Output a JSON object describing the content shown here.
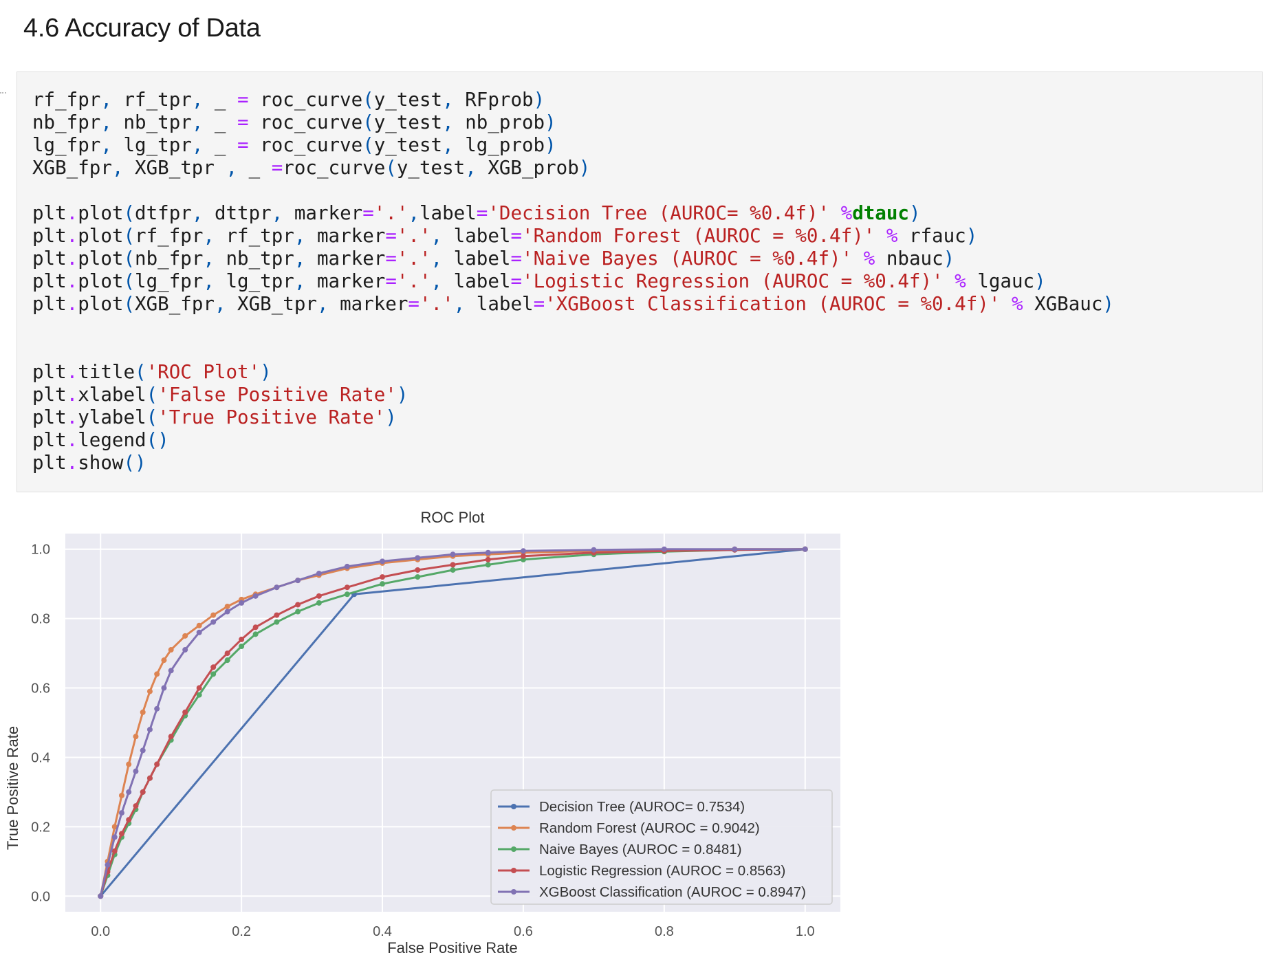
{
  "heading": "4.6 Accuracy of Data",
  "code_lines": [
    [
      [
        "t",
        "rf_fpr"
      ],
      [
        "p",
        ","
      ],
      [
        "t",
        " rf_tpr"
      ],
      [
        "p",
        ","
      ],
      [
        "t",
        " _ "
      ],
      [
        "o",
        "="
      ],
      [
        "t",
        " roc_curve"
      ],
      [
        "p",
        "("
      ],
      [
        "t",
        "y_test"
      ],
      [
        "p",
        ","
      ],
      [
        "t",
        " RFprob"
      ],
      [
        "p",
        ")"
      ]
    ],
    [
      [
        "t",
        "nb_fpr"
      ],
      [
        "p",
        ","
      ],
      [
        "t",
        " nb_tpr"
      ],
      [
        "p",
        ","
      ],
      [
        "t",
        " _ "
      ],
      [
        "o",
        "="
      ],
      [
        "t",
        " roc_curve"
      ],
      [
        "p",
        "("
      ],
      [
        "t",
        "y_test"
      ],
      [
        "p",
        ","
      ],
      [
        "t",
        " nb_prob"
      ],
      [
        "p",
        ")"
      ]
    ],
    [
      [
        "t",
        "lg_fpr"
      ],
      [
        "p",
        ","
      ],
      [
        "t",
        " lg_tpr"
      ],
      [
        "p",
        ","
      ],
      [
        "t",
        " _ "
      ],
      [
        "o",
        "="
      ],
      [
        "t",
        " roc_curve"
      ],
      [
        "p",
        "("
      ],
      [
        "t",
        "y_test"
      ],
      [
        "p",
        ","
      ],
      [
        "t",
        " lg_prob"
      ],
      [
        "p",
        ")"
      ]
    ],
    [
      [
        "t",
        "XGB_fpr"
      ],
      [
        "p",
        ","
      ],
      [
        "t",
        " XGB_tpr "
      ],
      [
        "p",
        ","
      ],
      [
        "t",
        " _ "
      ],
      [
        "o",
        "="
      ],
      [
        "t",
        "roc_curve"
      ],
      [
        "p",
        "("
      ],
      [
        "t",
        "y_test"
      ],
      [
        "p",
        ","
      ],
      [
        "t",
        " XGB_prob"
      ],
      [
        "p",
        ")"
      ]
    ],
    [],
    [
      [
        "t",
        "plt"
      ],
      [
        "o",
        "."
      ],
      [
        "t",
        "plot"
      ],
      [
        "p",
        "("
      ],
      [
        "t",
        "dtfpr"
      ],
      [
        "p",
        ","
      ],
      [
        "t",
        " dttpr"
      ],
      [
        "p",
        ","
      ],
      [
        "t",
        " marker"
      ],
      [
        "o",
        "="
      ],
      [
        "s",
        "'.'"
      ],
      [
        "p",
        ","
      ],
      [
        "t",
        "label"
      ],
      [
        "o",
        "="
      ],
      [
        "s",
        "'Decision Tree (AUROC= %0.4f)'"
      ],
      [
        "t",
        " "
      ],
      [
        "o",
        "%"
      ],
      [
        "k",
        "dtauc"
      ],
      [
        "p",
        ")"
      ]
    ],
    [
      [
        "t",
        "plt"
      ],
      [
        "o",
        "."
      ],
      [
        "t",
        "plot"
      ],
      [
        "p",
        "("
      ],
      [
        "t",
        "rf_fpr"
      ],
      [
        "p",
        ","
      ],
      [
        "t",
        " rf_tpr"
      ],
      [
        "p",
        ","
      ],
      [
        "t",
        " marker"
      ],
      [
        "o",
        "="
      ],
      [
        "s",
        "'.'"
      ],
      [
        "p",
        ","
      ],
      [
        "t",
        " label"
      ],
      [
        "o",
        "="
      ],
      [
        "s",
        "'Random Forest (AUROC = %0.4f)'"
      ],
      [
        "t",
        " "
      ],
      [
        "o",
        "%"
      ],
      [
        "t",
        " rfauc"
      ],
      [
        "p",
        ")"
      ]
    ],
    [
      [
        "t",
        "plt"
      ],
      [
        "o",
        "."
      ],
      [
        "t",
        "plot"
      ],
      [
        "p",
        "("
      ],
      [
        "t",
        "nb_fpr"
      ],
      [
        "p",
        ","
      ],
      [
        "t",
        " nb_tpr"
      ],
      [
        "p",
        ","
      ],
      [
        "t",
        " marker"
      ],
      [
        "o",
        "="
      ],
      [
        "s",
        "'.'"
      ],
      [
        "p",
        ","
      ],
      [
        "t",
        " label"
      ],
      [
        "o",
        "="
      ],
      [
        "s",
        "'Naive Bayes (AUROC = %0.4f)'"
      ],
      [
        "t",
        " "
      ],
      [
        "o",
        "%"
      ],
      [
        "t",
        " nbauc"
      ],
      [
        "p",
        ")"
      ]
    ],
    [
      [
        "t",
        "plt"
      ],
      [
        "o",
        "."
      ],
      [
        "t",
        "plot"
      ],
      [
        "p",
        "("
      ],
      [
        "t",
        "lg_fpr"
      ],
      [
        "p",
        ","
      ],
      [
        "t",
        " lg_tpr"
      ],
      [
        "p",
        ","
      ],
      [
        "t",
        " marker"
      ],
      [
        "o",
        "="
      ],
      [
        "s",
        "'.'"
      ],
      [
        "p",
        ","
      ],
      [
        "t",
        " label"
      ],
      [
        "o",
        "="
      ],
      [
        "s",
        "'Logistic Regression (AUROC = %0.4f)'"
      ],
      [
        "t",
        " "
      ],
      [
        "o",
        "%"
      ],
      [
        "t",
        " lgauc"
      ],
      [
        "p",
        ")"
      ]
    ],
    [
      [
        "t",
        "plt"
      ],
      [
        "o",
        "."
      ],
      [
        "t",
        "plot"
      ],
      [
        "p",
        "("
      ],
      [
        "t",
        "XGB_fpr"
      ],
      [
        "p",
        ","
      ],
      [
        "t",
        " XGB_tpr"
      ],
      [
        "p",
        ","
      ],
      [
        "t",
        " marker"
      ],
      [
        "o",
        "="
      ],
      [
        "s",
        "'.'"
      ],
      [
        "p",
        ","
      ],
      [
        "t",
        " label"
      ],
      [
        "o",
        "="
      ],
      [
        "s",
        "'XGBoost Classification (AUROC = %0.4f)'"
      ],
      [
        "t",
        " "
      ],
      [
        "o",
        "%"
      ],
      [
        "t",
        " XGBauc"
      ],
      [
        "p",
        ")"
      ]
    ],
    [],
    [],
    [
      [
        "t",
        "plt"
      ],
      [
        "o",
        "."
      ],
      [
        "t",
        "title"
      ],
      [
        "p",
        "("
      ],
      [
        "s",
        "'ROC Plot'"
      ],
      [
        "p",
        ")"
      ]
    ],
    [
      [
        "t",
        "plt"
      ],
      [
        "o",
        "."
      ],
      [
        "t",
        "xlabel"
      ],
      [
        "p",
        "("
      ],
      [
        "s",
        "'False Positive Rate'"
      ],
      [
        "p",
        ")"
      ]
    ],
    [
      [
        "t",
        "plt"
      ],
      [
        "o",
        "."
      ],
      [
        "t",
        "ylabel"
      ],
      [
        "p",
        "("
      ],
      [
        "s",
        "'True Positive Rate'"
      ],
      [
        "p",
        ")"
      ]
    ],
    [
      [
        "t",
        "plt"
      ],
      [
        "o",
        "."
      ],
      [
        "t",
        "legend"
      ],
      [
        "p",
        "()"
      ]
    ],
    [
      [
        "t",
        "plt"
      ],
      [
        "o",
        "."
      ],
      [
        "t",
        "show"
      ],
      [
        "p",
        "()"
      ]
    ]
  ],
  "colors": {
    "code_background": "#f5f5f5",
    "op": "#aa22ff",
    "string": "#ba2121",
    "paren": "#0055aa",
    "keyword": "#008000",
    "plot_background": "#eaeaf2"
  },
  "chart_data": {
    "type": "line",
    "title": "ROC Plot",
    "xlabel": "False Positive Rate",
    "ylabel": "True Positive Rate",
    "xlim": [
      -0.05,
      1.05
    ],
    "ylim": [
      -0.045,
      1.045
    ],
    "xticks": [
      "0.0",
      "0.2",
      "0.4",
      "0.6",
      "0.8",
      "1.0"
    ],
    "yticks": [
      "0.0",
      "0.2",
      "0.4",
      "0.6",
      "0.8",
      "1.0"
    ],
    "grid": true,
    "legend_position": "lower-right",
    "series": [
      {
        "name": "Decision Tree (AUROC= 0.7534)",
        "color": "#4c72b0",
        "x": [
          0.0,
          0.36,
          1.0
        ],
        "y": [
          0.0,
          0.87,
          1.0
        ]
      },
      {
        "name": "Random Forest (AUROC = 0.9042)",
        "color": "#dd8452",
        "x": [
          0.0,
          0.01,
          0.02,
          0.03,
          0.04,
          0.05,
          0.06,
          0.07,
          0.08,
          0.09,
          0.1,
          0.12,
          0.14,
          0.16,
          0.18,
          0.2,
          0.22,
          0.25,
          0.28,
          0.31,
          0.35,
          0.4,
          0.45,
          0.5,
          0.55,
          0.6,
          0.7,
          0.8,
          0.9,
          1.0
        ],
        "y": [
          0.0,
          0.1,
          0.2,
          0.29,
          0.38,
          0.46,
          0.53,
          0.59,
          0.64,
          0.68,
          0.71,
          0.75,
          0.78,
          0.81,
          0.835,
          0.855,
          0.87,
          0.89,
          0.91,
          0.925,
          0.945,
          0.96,
          0.97,
          0.98,
          0.985,
          0.99,
          0.995,
          0.998,
          1.0,
          1.0
        ]
      },
      {
        "name": "Naive Bayes (AUROC = 0.8481)",
        "color": "#55a868",
        "x": [
          0.0,
          0.01,
          0.02,
          0.03,
          0.04,
          0.05,
          0.06,
          0.07,
          0.08,
          0.1,
          0.12,
          0.14,
          0.16,
          0.18,
          0.2,
          0.22,
          0.25,
          0.28,
          0.31,
          0.35,
          0.4,
          0.45,
          0.5,
          0.55,
          0.6,
          0.7,
          0.8,
          0.9,
          1.0
        ],
        "y": [
          0.0,
          0.06,
          0.12,
          0.17,
          0.21,
          0.25,
          0.3,
          0.34,
          0.38,
          0.45,
          0.52,
          0.58,
          0.64,
          0.68,
          0.72,
          0.755,
          0.79,
          0.82,
          0.845,
          0.87,
          0.9,
          0.92,
          0.94,
          0.955,
          0.97,
          0.985,
          0.993,
          0.998,
          1.0
        ]
      },
      {
        "name": "Logistic Regression (AUROC = 0.8563)",
        "color": "#c44e52",
        "x": [
          0.0,
          0.01,
          0.02,
          0.03,
          0.04,
          0.05,
          0.06,
          0.07,
          0.08,
          0.1,
          0.12,
          0.14,
          0.16,
          0.18,
          0.2,
          0.22,
          0.25,
          0.28,
          0.31,
          0.35,
          0.4,
          0.45,
          0.5,
          0.55,
          0.6,
          0.7,
          0.8,
          0.9,
          1.0
        ],
        "y": [
          0.0,
          0.07,
          0.13,
          0.18,
          0.22,
          0.26,
          0.3,
          0.34,
          0.38,
          0.46,
          0.53,
          0.6,
          0.66,
          0.7,
          0.74,
          0.775,
          0.81,
          0.84,
          0.865,
          0.89,
          0.92,
          0.94,
          0.955,
          0.97,
          0.98,
          0.99,
          0.995,
          0.998,
          1.0
        ]
      },
      {
        "name": "XGBoost Classification (AUROC = 0.8947)",
        "color": "#8172b3",
        "x": [
          0.0,
          0.01,
          0.02,
          0.03,
          0.04,
          0.05,
          0.06,
          0.07,
          0.08,
          0.09,
          0.1,
          0.12,
          0.14,
          0.16,
          0.18,
          0.2,
          0.22,
          0.25,
          0.28,
          0.31,
          0.35,
          0.4,
          0.45,
          0.5,
          0.55,
          0.6,
          0.7,
          0.8,
          0.9,
          1.0
        ],
        "y": [
          0.0,
          0.09,
          0.17,
          0.24,
          0.3,
          0.36,
          0.42,
          0.48,
          0.54,
          0.6,
          0.65,
          0.71,
          0.76,
          0.79,
          0.82,
          0.845,
          0.865,
          0.89,
          0.91,
          0.93,
          0.95,
          0.965,
          0.975,
          0.985,
          0.99,
          0.995,
          0.998,
          1.0,
          1.0,
          1.0
        ]
      }
    ]
  }
}
